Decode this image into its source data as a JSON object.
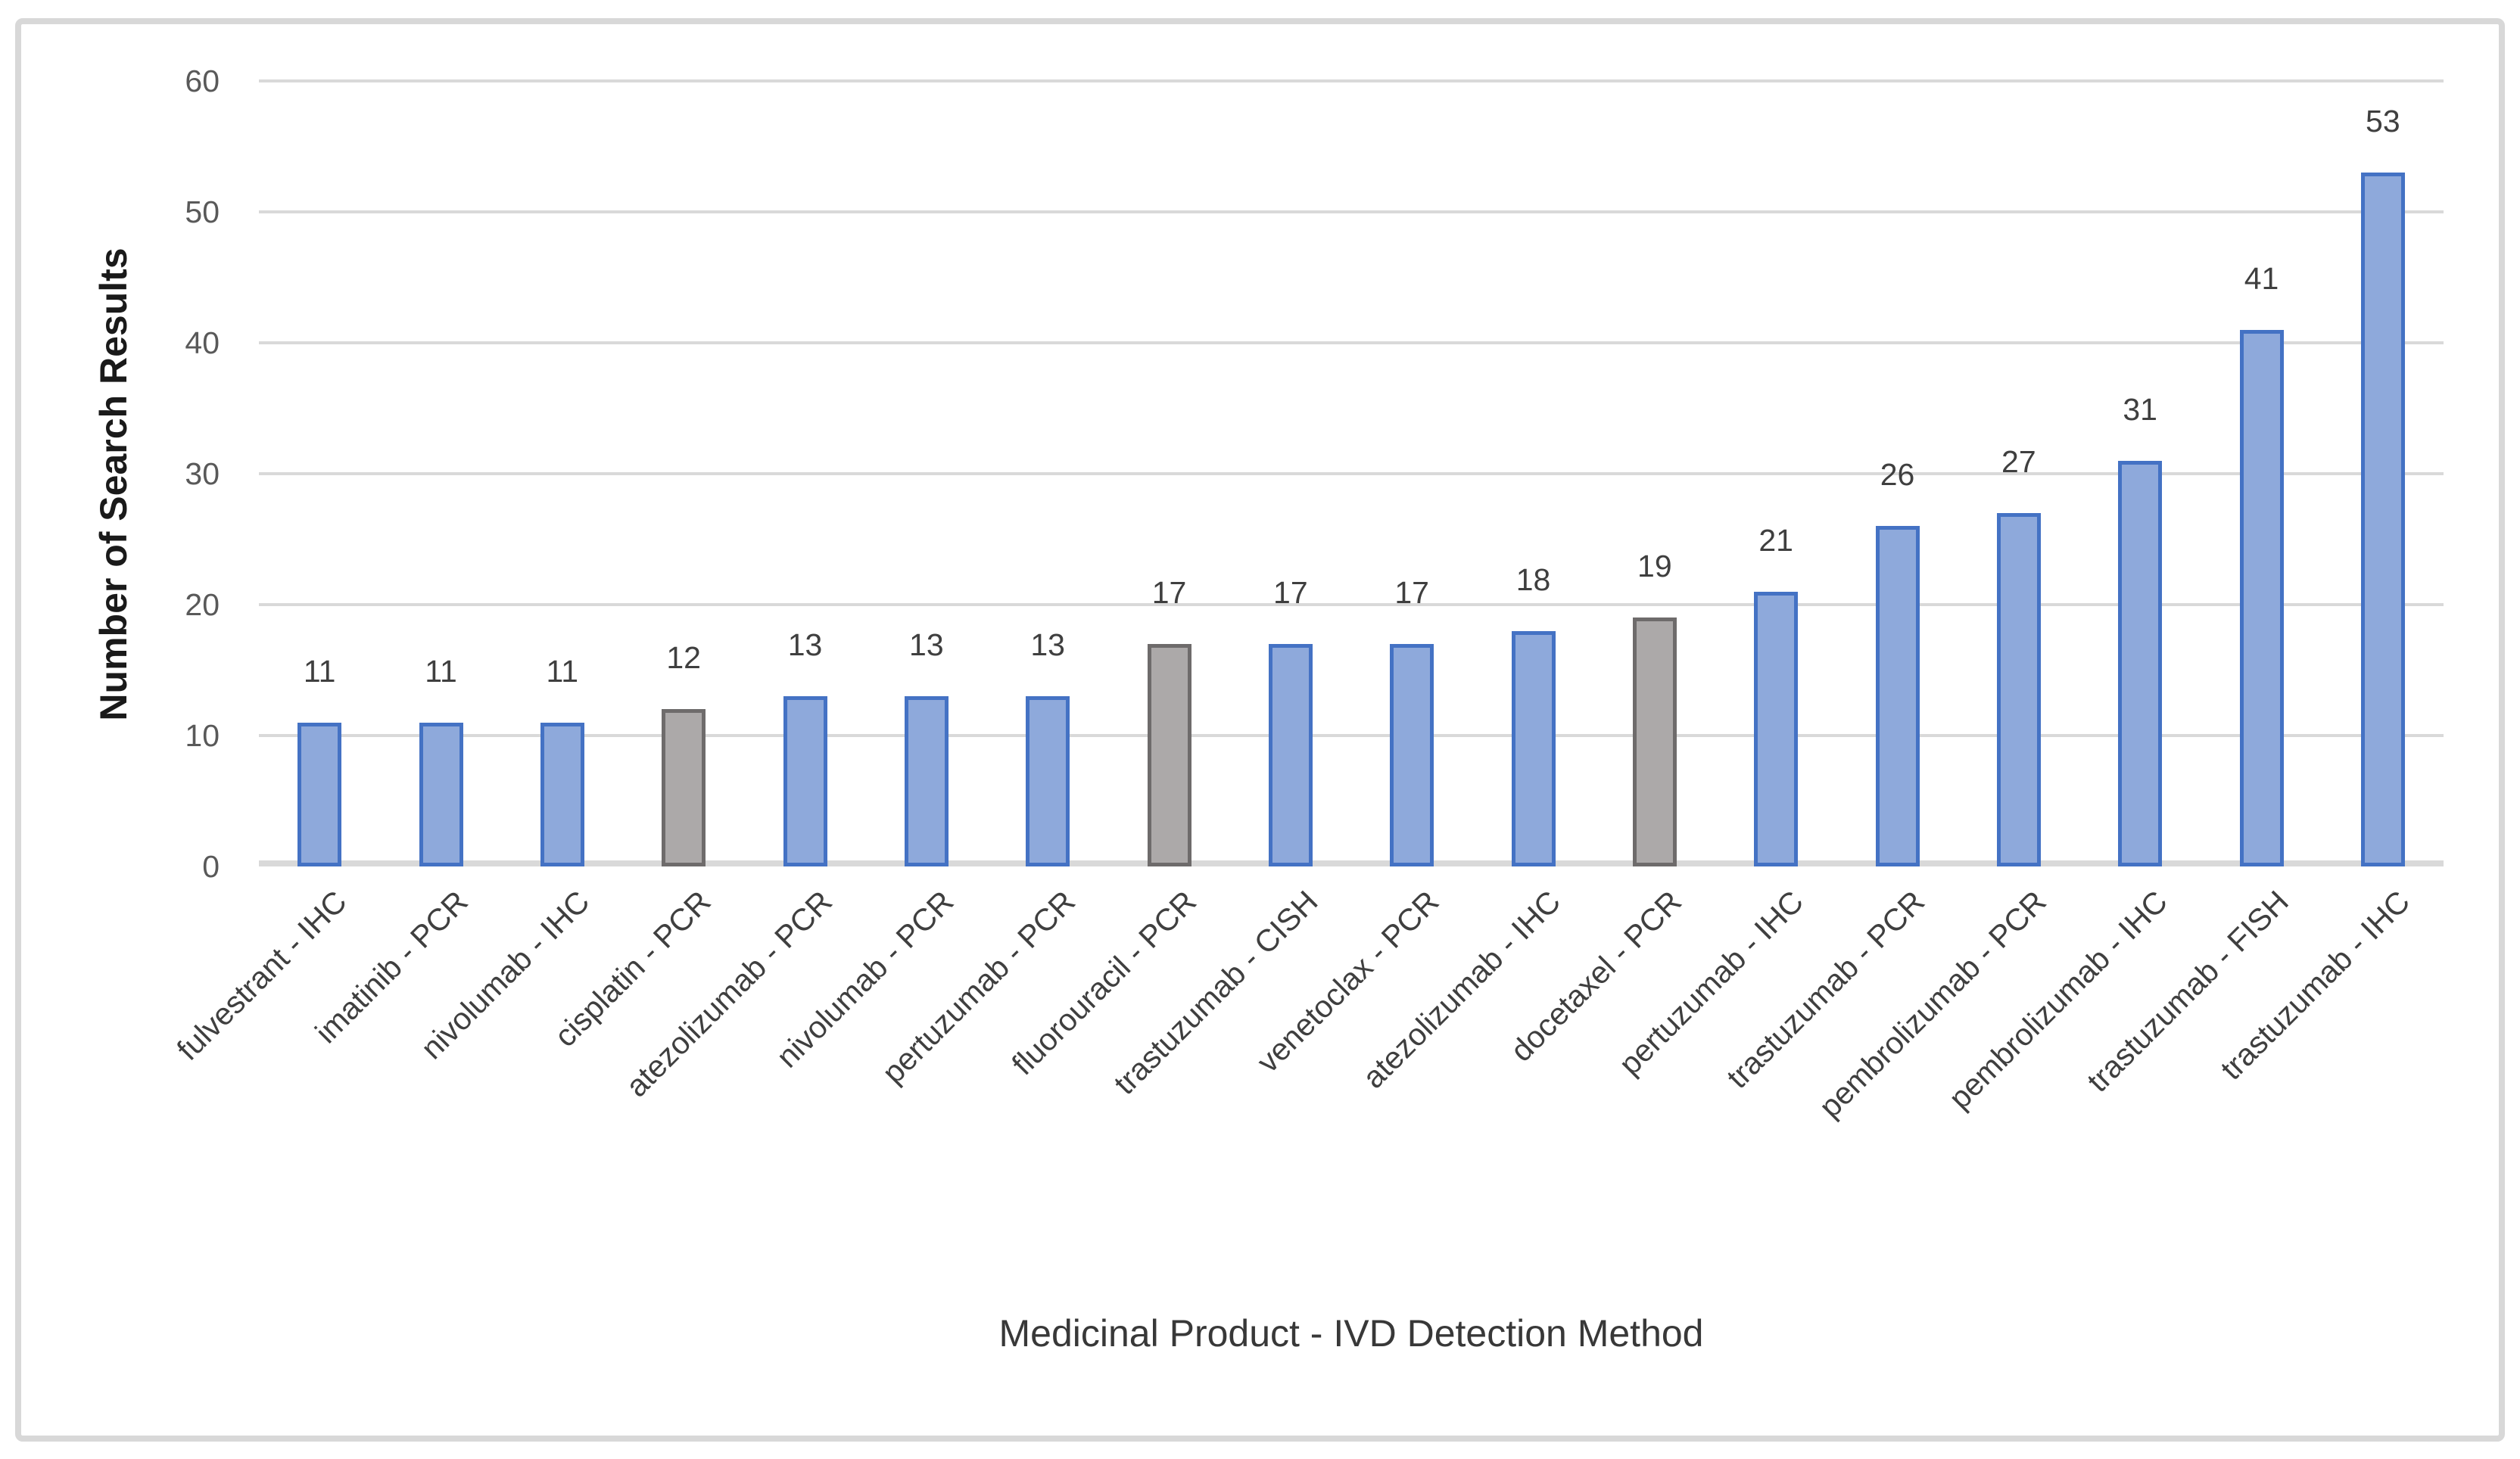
{
  "chart_data": {
    "type": "bar",
    "title": "",
    "xlabel": "Medicinal Product - IVD Detection Method",
    "ylabel": "Number of Search Results",
    "ylim": [
      0,
      60
    ],
    "yticks": [
      0,
      10,
      20,
      30,
      40,
      50,
      60
    ],
    "grid": true,
    "legend": "none",
    "categories": [
      "fulvestrant - IHC",
      "imatinib - PCR",
      "nivolumab - IHC",
      "cisplatin - PCR",
      "atezolizumab - PCR",
      "nivolumab - PCR",
      "pertuzumab - PCR",
      "fluorouracil - PCR",
      "trastuzumab - CISH",
      "venetoclax - PCR",
      "atezolizumab - IHC",
      "docetaxel - PCR",
      "pertuzumab - IHC",
      "trastuzumab - PCR",
      "pembrolizumab - PCR",
      "pembrolizumab - IHC",
      "trastuzumab - FISH",
      "trastuzumab - IHC"
    ],
    "values": [
      11,
      11,
      11,
      12,
      13,
      13,
      13,
      17,
      17,
      17,
      18,
      19,
      21,
      26,
      27,
      31,
      41,
      53
    ],
    "bar_styles": [
      "blue",
      "blue",
      "blue",
      "gray",
      "blue",
      "blue",
      "blue",
      "gray",
      "blue",
      "blue",
      "blue",
      "gray",
      "blue",
      "blue",
      "blue",
      "blue",
      "blue",
      "blue"
    ],
    "data_labels_shown": true
  },
  "colors": {
    "blue_fill": "#8EA9DB",
    "blue_border": "#4472C4",
    "gray_fill": "#ACA9A9",
    "gray_border": "#6E6B6B",
    "gridline": "#D9D9D9",
    "axis_line": "#D9D9D9",
    "tick_label": "#595959",
    "value_label": "#3F3F3F",
    "category_label": "#3F3F3F",
    "frame_border": "#D8D8D8",
    "background": "#FFFFFF"
  }
}
